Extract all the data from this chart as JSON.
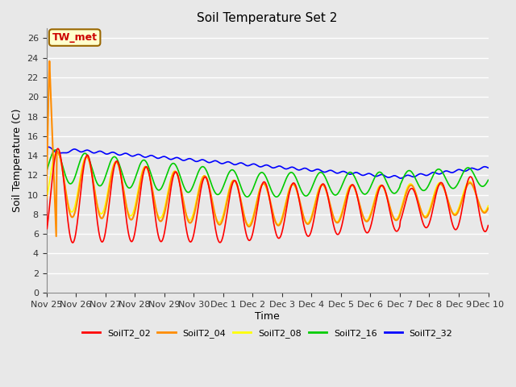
{
  "title": "Soil Temperature Set 2",
  "xlabel": "Time",
  "ylabel": "Soil Temperature (C)",
  "ylim": [
    0,
    27
  ],
  "yticks": [
    0,
    2,
    4,
    6,
    8,
    10,
    12,
    14,
    16,
    18,
    20,
    22,
    24,
    26
  ],
  "colors": {
    "SoilT2_02": "#ff0000",
    "SoilT2_04": "#ff8c00",
    "SoilT2_08": "#ffff00",
    "SoilT2_16": "#00cc00",
    "SoilT2_32": "#0000ff"
  },
  "annotation_label": "TW_met",
  "annotation_color": "#cc0000",
  "annotation_bg": "#ffffcc",
  "annotation_border": "#996600",
  "bg_color": "#e8e8e8",
  "grid_color": "#ffffff",
  "xtick_labels": [
    "Nov 25",
    "Nov 26",
    "Nov 27",
    "Nov 28",
    "Nov 29",
    "Nov 30",
    "Dec 1",
    "Dec 2",
    "Dec 3",
    "Dec 4",
    "Dec 5",
    "Dec 6",
    "Dec 7",
    "Dec 8",
    "Dec 9",
    "Dec 10"
  ],
  "xtick_positions": [
    0,
    1,
    2,
    3,
    4,
    5,
    6,
    7,
    8,
    9,
    10,
    11,
    12,
    13,
    14,
    15
  ],
  "duration_days": 15,
  "n_points": 720
}
